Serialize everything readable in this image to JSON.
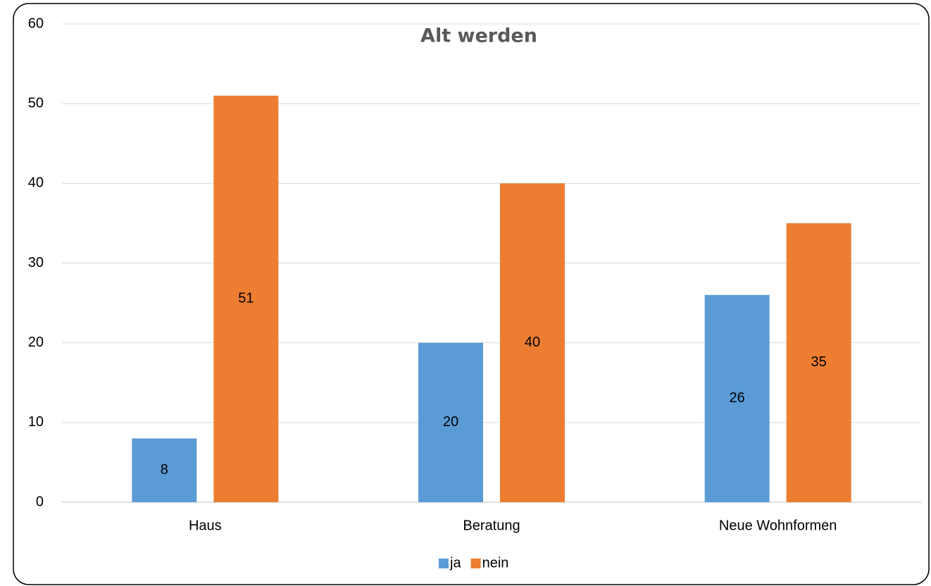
{
  "chart_data": {
    "type": "bar",
    "title": "Alt werden",
    "categories": [
      "Haus",
      "Beratung",
      "Neue Wohnformen"
    ],
    "series": [
      {
        "name": "ja",
        "color": "#5b9bd5",
        "values": [
          8,
          20,
          26
        ]
      },
      {
        "name": "nein",
        "color": "#ed7d31",
        "values": [
          51,
          40,
          35
        ]
      }
    ],
    "ylim": [
      0,
      60
    ],
    "yticks": [
      0,
      10,
      20,
      30,
      40,
      50,
      60
    ],
    "grid": true,
    "legend": "bottom"
  }
}
